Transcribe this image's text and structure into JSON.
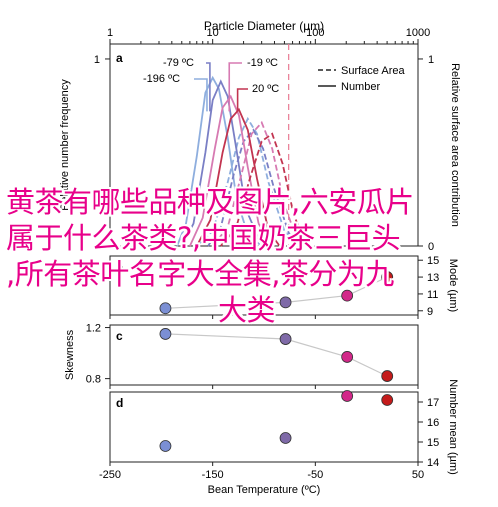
{
  "overlay_lines": [
    "黄茶有哪些品种及图片,六安瓜片",
    "属于什么茶类?,中国奶茶三巨头",
    ",所有茶叶名字大全集,茶分为九",
    "大类"
  ],
  "chart_data": [
    {
      "panel": "a",
      "type": "line",
      "title": "Particle Diameter (µm)",
      "ylabel": "Relative number frequency",
      "y2label": "Relative surface area contribution",
      "xscale": "log",
      "xlim": [
        1,
        1000
      ],
      "ylim": [
        0,
        1.08
      ],
      "xticks": [
        "1",
        "10",
        "100",
        "1000"
      ],
      "yticks": [
        "0",
        "1"
      ],
      "y2ticks": [
        "0",
        "1"
      ],
      "legend": [
        "Surface Area",
        "Number"
      ],
      "legend_placement": "top-right",
      "annotations": [
        "-79 ºC",
        "-196 ºC",
        "-19 ºC",
        "20 ºC"
      ],
      "surface_area_marker_um": 55,
      "series": [
        {
          "name": "-196 ºC",
          "color": "#8eaede",
          "number": [
            [
              4.5,
              0
            ],
            [
              5.5,
              0.12
            ],
            [
              7,
              0.48
            ],
            [
              8.5,
              0.82
            ],
            [
              10,
              0.9
            ],
            [
              11.5,
              0.84
            ],
            [
              14,
              0.58
            ],
            [
              17,
              0.26
            ],
            [
              22,
              0.06
            ],
            [
              30,
              0
            ]
          ],
          "surface": [
            [
              7,
              0
            ],
            [
              10,
              0.08
            ],
            [
              14,
              0.34
            ],
            [
              18,
              0.58
            ],
            [
              22,
              0.68
            ],
            [
              27,
              0.6
            ],
            [
              35,
              0.34
            ],
            [
              50,
              0.08
            ],
            [
              70,
              0
            ]
          ]
        },
        {
          "name": "-79 ºC",
          "color": "#7a7fc5",
          "number": [
            [
              5,
              0
            ],
            [
              6.5,
              0.12
            ],
            [
              8.5,
              0.5
            ],
            [
              10,
              0.78
            ],
            [
              12,
              0.88
            ],
            [
              14,
              0.8
            ],
            [
              17,
              0.52
            ],
            [
              21,
              0.2
            ],
            [
              28,
              0.04
            ],
            [
              36,
              0
            ]
          ],
          "surface": [
            [
              9,
              0
            ],
            [
              12,
              0.1
            ],
            [
              16,
              0.38
            ],
            [
              20,
              0.56
            ],
            [
              25,
              0.62
            ],
            [
              31,
              0.52
            ],
            [
              40,
              0.3
            ],
            [
              55,
              0.07
            ],
            [
              75,
              0
            ]
          ]
        },
        {
          "name": "-19 ºC",
          "color": "#d77ab2",
          "number": [
            [
              6,
              0
            ],
            [
              8,
              0.15
            ],
            [
              10.5,
              0.52
            ],
            [
              12.5,
              0.74
            ],
            [
              15,
              0.8
            ],
            [
              18,
              0.7
            ],
            [
              22,
              0.42
            ],
            [
              28,
              0.12
            ],
            [
              38,
              0
            ]
          ],
          "surface": [
            [
              10,
              0
            ],
            [
              14,
              0.1
            ],
            [
              19,
              0.38
            ],
            [
              24,
              0.6
            ],
            [
              30,
              0.66
            ],
            [
              38,
              0.52
            ],
            [
              50,
              0.22
            ],
            [
              70,
              0
            ]
          ]
        },
        {
          "name": "20 ºC",
          "color": "#c23450",
          "number": [
            [
              7,
              0
            ],
            [
              9.5,
              0.14
            ],
            [
              12.5,
              0.5
            ],
            [
              15,
              0.68
            ],
            [
              18,
              0.73
            ],
            [
              22,
              0.62
            ],
            [
              27,
              0.36
            ],
            [
              35,
              0.08
            ],
            [
              45,
              0
            ]
          ],
          "surface": [
            [
              12,
              0
            ],
            [
              17,
              0.1
            ],
            [
              23,
              0.36
            ],
            [
              30,
              0.56
            ],
            [
              38,
              0.6
            ],
            [
              48,
              0.44
            ],
            [
              62,
              0.16
            ],
            [
              85,
              0
            ]
          ]
        }
      ]
    },
    {
      "panel": "b",
      "type": "scatter",
      "ylabel": "Mode (µm)",
      "ylim": [
        8.5,
        15.5
      ],
      "yticks": [
        "9",
        "11",
        "13",
        "15"
      ],
      "x": [
        -196,
        -79,
        -19,
        20
      ],
      "y": [
        9.3,
        10.0,
        10.8,
        13.0
      ]
    },
    {
      "panel": "c",
      "type": "scatter",
      "ylabel": "Skewness",
      "ylim": [
        0.75,
        1.22
      ],
      "yticks": [
        "0.8",
        "1.2"
      ],
      "x": [
        -196,
        -79,
        -19,
        20
      ],
      "y": [
        1.15,
        1.11,
        0.97,
        0.82
      ]
    },
    {
      "panel": "d",
      "type": "scatter",
      "y2label": "Number mean (µm)",
      "ylim": [
        14.0,
        17.5
      ],
      "yticks": [
        "14",
        "15",
        "16",
        "17"
      ],
      "x": [
        -196,
        -79,
        -19,
        20
      ],
      "y": [
        14.8,
        15.2,
        17.3,
        17.1
      ],
      "xlabel": "Bean Temperature (ºC)",
      "xlim": [
        -250,
        50
      ],
      "xticks": [
        -250,
        -150,
        -50,
        50
      ],
      "xtick_labels": [
        "-250",
        "-150",
        "-50",
        "50"
      ]
    }
  ],
  "marker_colors": [
    "#7b8fd4",
    "#7f6aa8",
    "#d22889",
    "#c41b1b"
  ]
}
